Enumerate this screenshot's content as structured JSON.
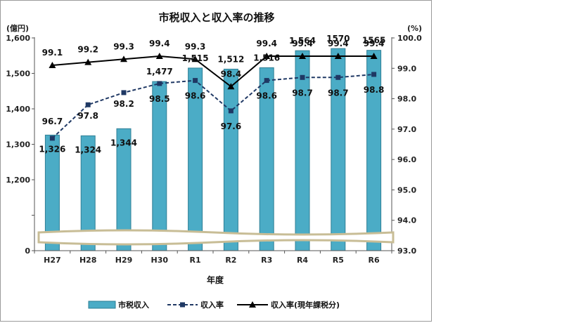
{
  "chart_data": {
    "type": "bar",
    "title": "市税収入と収入率の推移",
    "xlabel": "年度",
    "y_left_unit": "(億円)",
    "y_right_unit": "(%)",
    "categories": [
      "H27",
      "H28",
      "H29",
      "H30",
      "R1",
      "R2",
      "R3",
      "R4",
      "R5",
      "R6"
    ],
    "y_left_ticks": [
      "0",
      "1,200",
      "1,300",
      "1,400",
      "1,500",
      "1,600"
    ],
    "y_right_ticks": [
      "93.0",
      "94.0",
      "95.0",
      "96.0",
      "97.0",
      "98.0",
      "99.0",
      "100.0"
    ],
    "y_left_range": [
      1100,
      1600
    ],
    "y_left_break": "axis break between 0 and 1,200",
    "y_right_range": [
      93.0,
      100.0
    ],
    "series": [
      {
        "name": "市税収入",
        "kind": "bar",
        "axis": "left",
        "color": "#4bacc6",
        "values": [
          1326,
          1324,
          1344,
          1477,
          1515,
          1512,
          1516,
          1564,
          1570,
          1565
        ],
        "labels": [
          "1,326",
          "1,324",
          "1,344",
          "1,477",
          "1,515",
          "1,512",
          "1,516",
          "1,564",
          "1570",
          "1565"
        ]
      },
      {
        "name": "収入率",
        "kind": "line-dashed-square",
        "axis": "right",
        "color": "#1f3864",
        "values": [
          96.7,
          97.8,
          98.2,
          98.5,
          98.6,
          97.6,
          98.6,
          98.7,
          98.7,
          98.8
        ],
        "labels": [
          "96.7",
          "97.8",
          "98.2",
          "98.5",
          "98.6",
          "97.6",
          "98.6",
          "98.7",
          "98.7",
          "98.8"
        ]
      },
      {
        "name": "収入率(現年課税分)",
        "kind": "line-solid-triangle",
        "axis": "right",
        "color": "#000000",
        "values": [
          99.1,
          99.2,
          99.3,
          99.4,
          99.3,
          98.4,
          99.4,
          99.4,
          99.4,
          99.4
        ],
        "labels": [
          "99.1",
          "99.2",
          "99.3",
          "99.4",
          "99.3",
          "98.4",
          "99.4",
          "99.4",
          "99.4",
          "99.4"
        ]
      }
    ],
    "grid": false,
    "legend": "bottom"
  }
}
